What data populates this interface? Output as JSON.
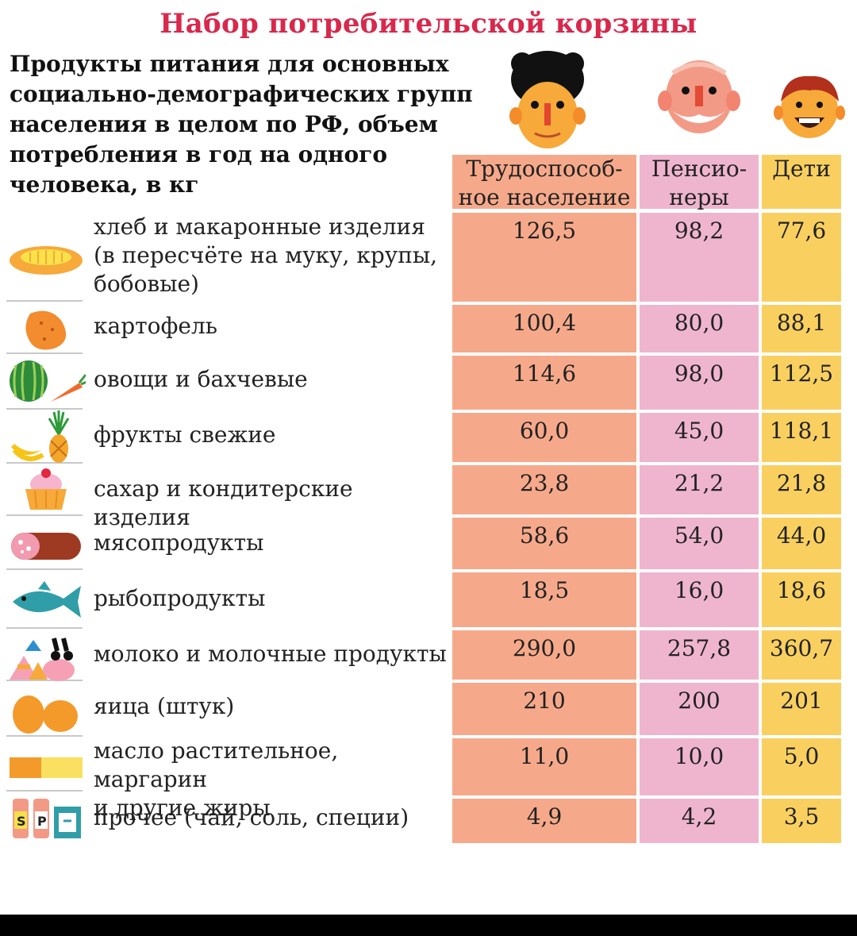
{
  "title": "Набор потребительской корзины",
  "subtitle": "Продукты питания для основных\nсоциально-демографических групп\nнаселения в целом по РФ, объем\nпотребления в год на одного\nчеловека, в кг",
  "colors": {
    "title": "#d8284b",
    "working": "#f6a98a",
    "pensioners": "#efb5cf",
    "children": "#f9d060"
  },
  "chart_data": {
    "type": "table",
    "title": "Набор потребительской корзины",
    "columns": [
      "Трудоспособ-\nное население",
      "Пенсио-\nнеры",
      "Дети"
    ],
    "rows": [
      {
        "label": "хлеб и макаронные изделия\n(в пересчёте на муку, крупы,\nбобовые)",
        "icon": "bread-icon",
        "values": [
          "126,5",
          "98,2",
          "77,6"
        ]
      },
      {
        "label": "картофель",
        "icon": "potato-icon",
        "values": [
          "100,4",
          "80,0",
          "88,1"
        ]
      },
      {
        "label": "овощи и бахчевые",
        "icon": "watermelon-carrot-icon",
        "values": [
          "114,6",
          "98,0",
          "112,5"
        ]
      },
      {
        "label": "фрукты свежие",
        "icon": "banana-pineapple-icon",
        "values": [
          "60,0",
          "45,0",
          "118,1"
        ]
      },
      {
        "label": "сахар и кондитерские изделия",
        "icon": "cupcake-icon",
        "values": [
          "23,8",
          "21,2",
          "21,8"
        ]
      },
      {
        "label": "мясопродукты",
        "icon": "sausage-icon",
        "values": [
          "58,6",
          "54,0",
          "44,0"
        ]
      },
      {
        "label": "рыбопродукты",
        "icon": "fish-icon",
        "values": [
          "18,5",
          "16,0",
          "18,6"
        ]
      },
      {
        "label": "молоко и молочные продукты",
        "icon": "dairy-icon",
        "values": [
          "290,0",
          "257,8",
          "360,7"
        ]
      },
      {
        "label": "яица  (штук)",
        "icon": "eggs-icon",
        "values": [
          "210",
          "200",
          "201"
        ]
      },
      {
        "label": "масло растительное, маргарин\nи другие жиры",
        "icon": "butter-icon",
        "values": [
          "11,0",
          "10,0",
          "5,0"
        ]
      },
      {
        "label": "прочее (чай, соль, специи)",
        "icon": "salt-pepper-icon",
        "values": [
          "4,9",
          "4,2",
          "3,5"
        ]
      }
    ]
  }
}
